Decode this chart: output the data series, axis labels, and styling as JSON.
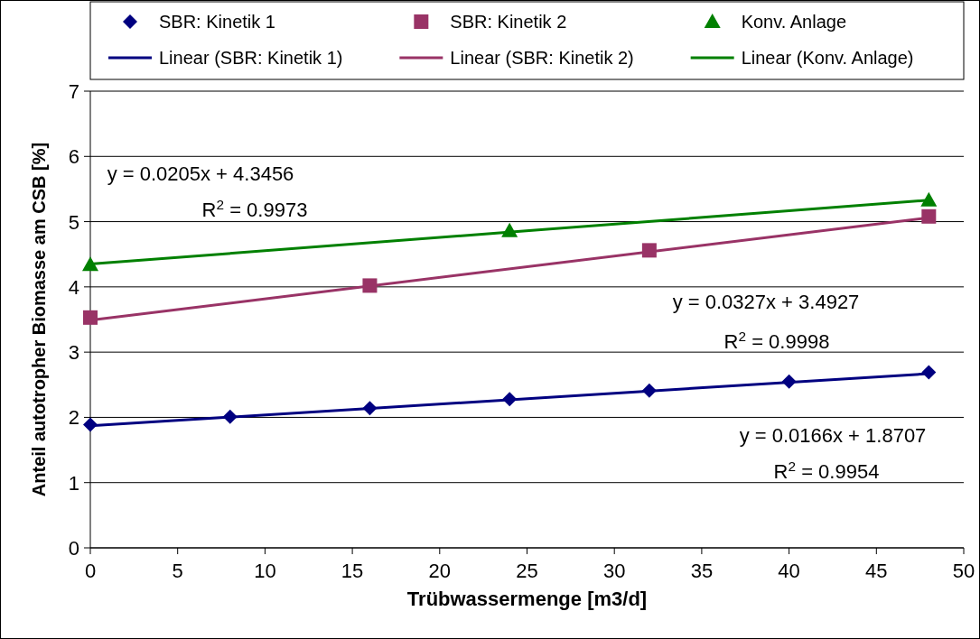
{
  "chart_data": {
    "type": "scatter",
    "xlabel": "Trübwassermenge [m3/d]",
    "ylabel": "Anteil autotropher Biomasse am CSB [%]",
    "xlim": [
      0,
      50
    ],
    "xticks": [
      0,
      5,
      10,
      15,
      20,
      25,
      30,
      35,
      40,
      45,
      50
    ],
    "ylim": [
      0,
      7
    ],
    "yticks": [
      0,
      1,
      2,
      3,
      4,
      5,
      6,
      7
    ],
    "grid": "y",
    "legend": "top",
    "series": [
      {
        "name": "SBR: Kinetik 1",
        "marker": "diamond",
        "color": "#000080",
        "x": [
          0,
          8,
          16,
          24,
          32,
          40,
          48
        ],
        "values": [
          1.89,
          2.01,
          2.14,
          2.28,
          2.41,
          2.55,
          2.69
        ]
      },
      {
        "name": "SBR: Kinetik 2",
        "marker": "square",
        "color": "#993366",
        "x": [
          0,
          16,
          32,
          48
        ],
        "values": [
          3.53,
          4.02,
          4.56,
          5.08
        ]
      },
      {
        "name": "Konv. Anlage",
        "marker": "triangle",
        "color": "#008000",
        "x": [
          0,
          24,
          48
        ],
        "values": [
          4.34,
          4.86,
          5.33
        ]
      },
      {
        "name": "Linear (SBR: Kinetik 1)",
        "type": "line",
        "color": "#000080",
        "x": [
          0,
          48
        ],
        "values": [
          1.87,
          2.67
        ]
      },
      {
        "name": "Linear (SBR: Kinetik 2)",
        "type": "line",
        "color": "#993366",
        "x": [
          0,
          48
        ],
        "values": [
          3.49,
          5.06
        ]
      },
      {
        "name": "Linear (Konv. Anlage)",
        "type": "line",
        "color": "#008000",
        "x": [
          0,
          48
        ],
        "values": [
          4.35,
          5.33
        ]
      }
    ],
    "annotations": [
      "y = 0.0205x + 4.3456",
      "R$^{2}$ = 0.9973",
      "y = 0.0327x + 3.4927",
      "R$^{2}$ = 0.9998",
      "y = 0.0166x + 1.8707",
      "R$^{2}$ = 0.9954"
    ]
  }
}
